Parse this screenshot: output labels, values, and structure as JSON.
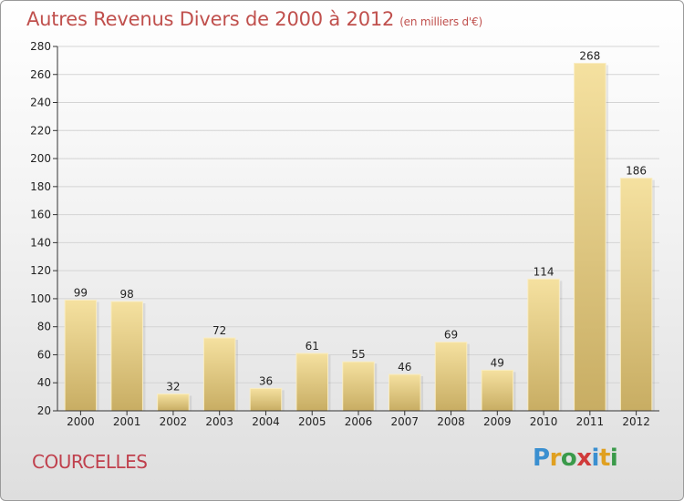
{
  "header": {
    "title": "Autres Revenus Divers de 2000 à 2012",
    "unit": "(en milliers d'€)"
  },
  "footer": {
    "city": "COURCELLES",
    "logo": {
      "letters": [
        "P",
        "r",
        "o",
        "x",
        "i",
        "t",
        "i"
      ],
      "colors": [
        "#3a8fd0",
        "#e0a020",
        "#3a9a4a",
        "#d03a3a",
        "#3a8fd0",
        "#e0a020",
        "#3a9a4a"
      ]
    }
  },
  "colors": {
    "title": "#c0504d",
    "bar_top": "#f5e1a0",
    "bar_bottom": "#c8ad63",
    "grid": "#d4d4d4",
    "axis": "#333333"
  },
  "chart_data": {
    "type": "bar",
    "categories": [
      "2000",
      "2001",
      "2002",
      "2003",
      "2004",
      "2005",
      "2006",
      "2007",
      "2008",
      "2009",
      "2010",
      "2011",
      "2012"
    ],
    "values": [
      99,
      98,
      32,
      72,
      36,
      61,
      55,
      46,
      69,
      49,
      114,
      268,
      186
    ],
    "ylim": [
      20,
      280
    ],
    "yticks": [
      20,
      40,
      60,
      80,
      100,
      120,
      140,
      160,
      180,
      200,
      220,
      240,
      260,
      280
    ],
    "grid": true,
    "data_labels": true
  }
}
